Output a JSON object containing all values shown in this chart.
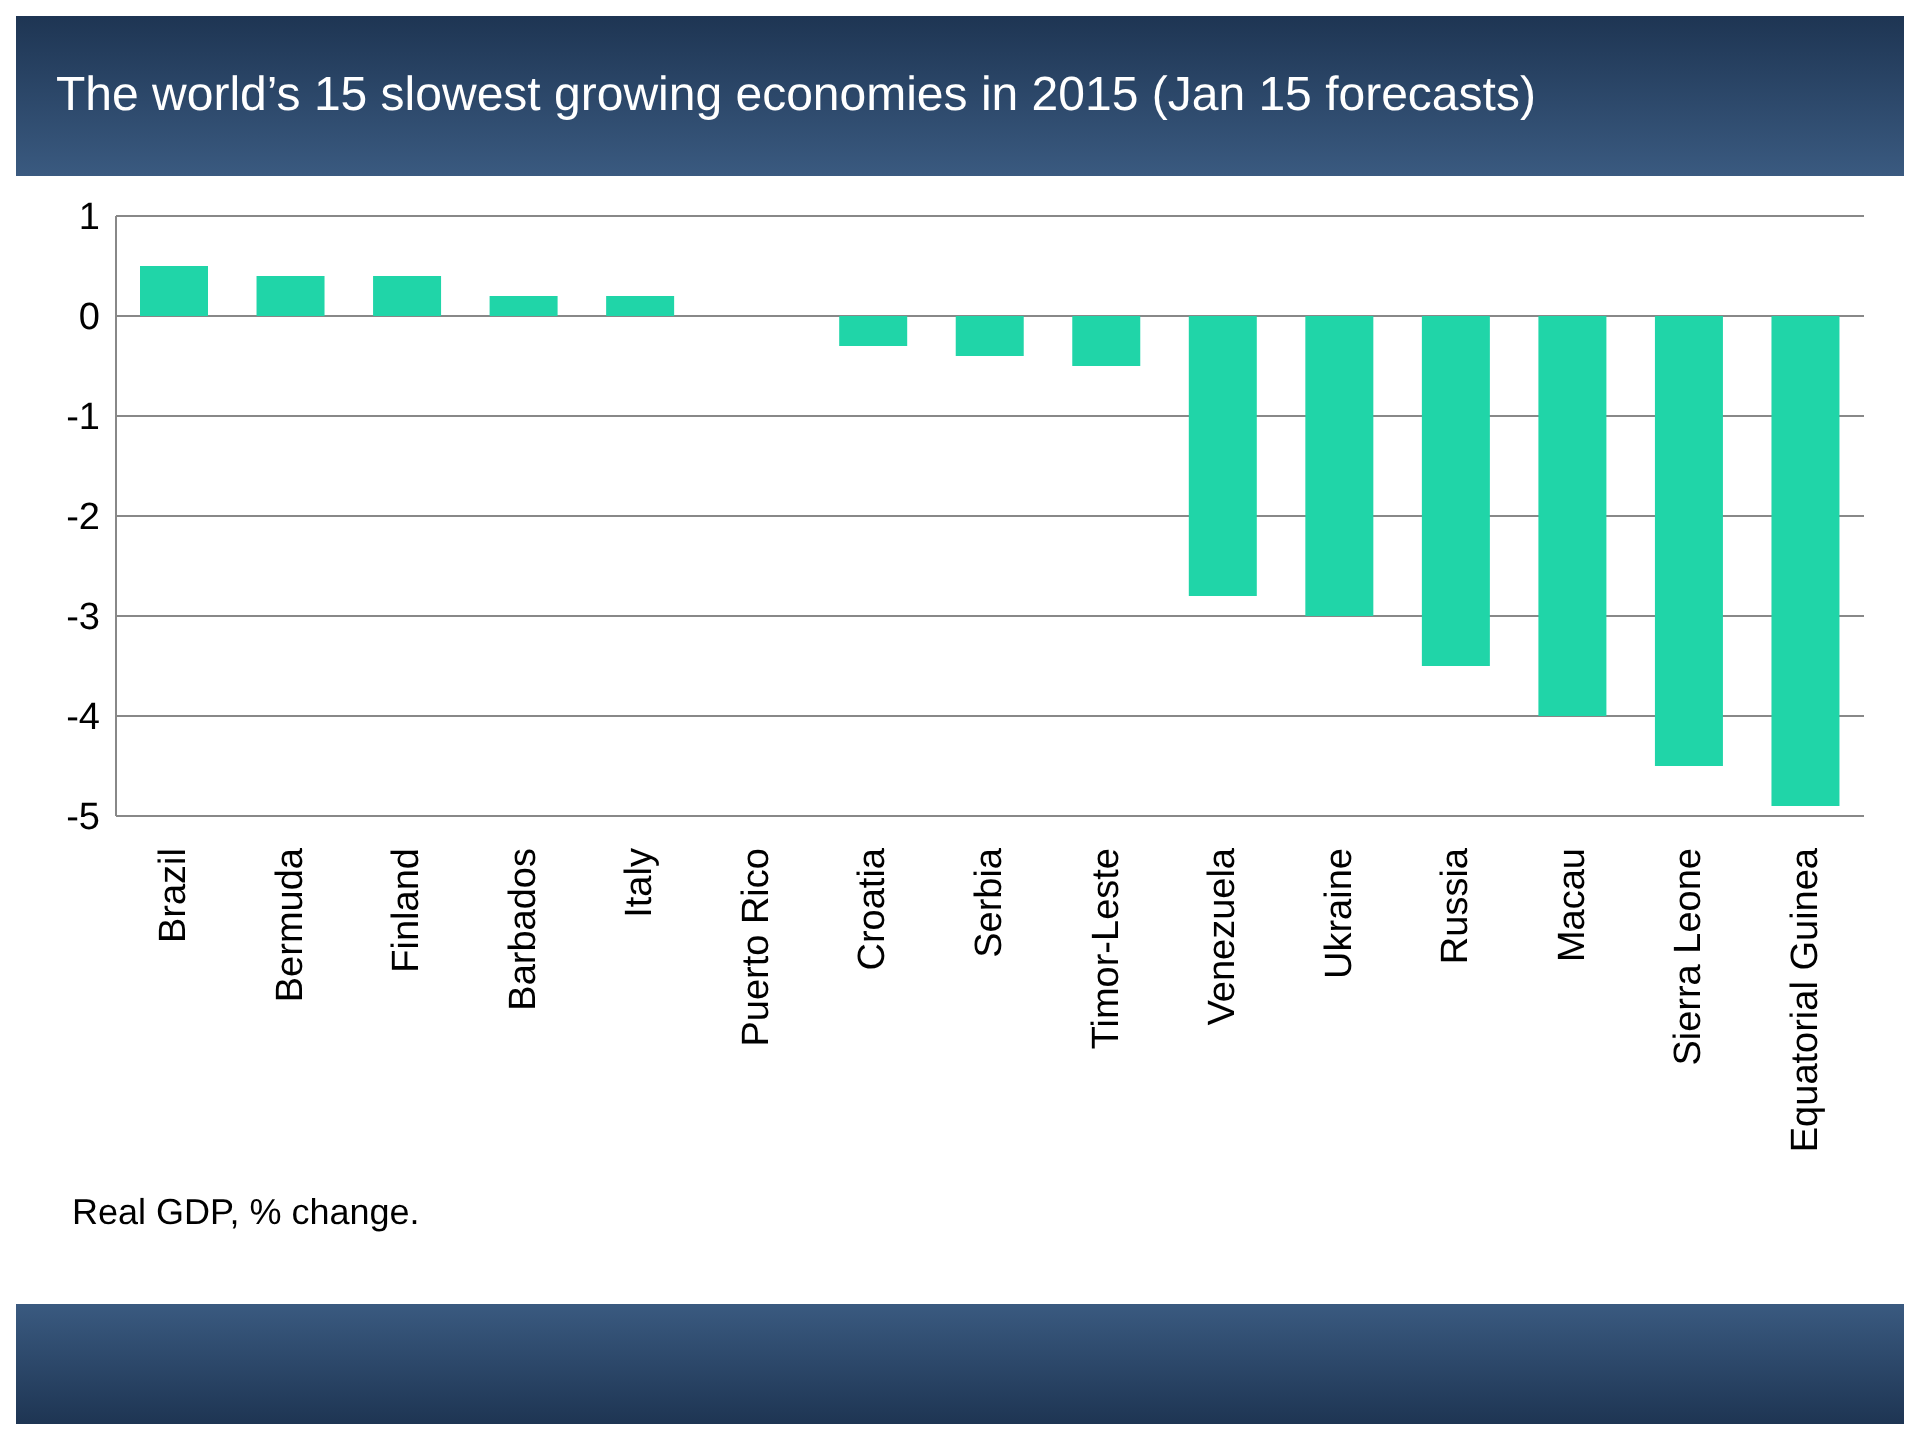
{
  "chart_data": {
    "type": "bar",
    "title": "The world’s 15 slowest growing economies in 2015 (Jan 15 forecasts)",
    "categories": [
      "Brazil",
      "Bermuda",
      "Finland",
      "Barbados",
      "Italy",
      "Puerto Rico",
      "Croatia",
      "Serbia",
      "Timor-Leste",
      "Venezuela",
      "Ukraine",
      "Russia",
      "Macau",
      "Sierra Leone",
      "Equatorial Guinea"
    ],
    "values": [
      0.5,
      0.4,
      0.4,
      0.2,
      0.2,
      0.0,
      -0.3,
      -0.4,
      -0.5,
      -2.8,
      -3.0,
      -3.5,
      -4.0,
      -4.5,
      -4.9
    ],
    "color": "#20d5a8",
    "ylim": [
      -5,
      1
    ],
    "yticks": [
      -5,
      -4,
      -3,
      -2,
      -1,
      0,
      1
    ],
    "grid": "y",
    "annotations": [
      "Real GDP, % change."
    ]
  }
}
